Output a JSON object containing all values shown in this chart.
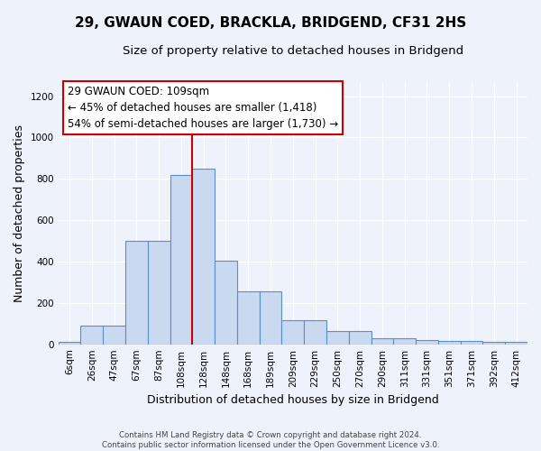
{
  "title1": "29, GWAUN COED, BRACKLA, BRIDGEND, CF31 2HS",
  "title2": "Size of property relative to detached houses in Bridgend",
  "xlabel": "Distribution of detached houses by size in Bridgend",
  "ylabel": "Number of detached properties",
  "categories": [
    "6sqm",
    "26sqm",
    "47sqm",
    "67sqm",
    "87sqm",
    "108sqm",
    "128sqm",
    "148sqm",
    "168sqm",
    "189sqm",
    "209sqm",
    "229sqm",
    "250sqm",
    "270sqm",
    "290sqm",
    "311sqm",
    "331sqm",
    "351sqm",
    "371sqm",
    "392sqm",
    "412sqm"
  ],
  "values": [
    10,
    90,
    90,
    500,
    500,
    820,
    850,
    405,
    255,
    255,
    115,
    115,
    65,
    65,
    30,
    30,
    20,
    15,
    15,
    10,
    10
  ],
  "bar_color": "#c9d9f0",
  "bar_edge_color": "#5b8fc9",
  "vline_x": 5.5,
  "vline_color": "#cc0000",
  "annotation_line1": "29 GWAUN COED: 109sqm",
  "annotation_line2": "← 45% of detached houses are smaller (1,418)",
  "annotation_line3": "54% of semi-detached houses are larger (1,730) →",
  "annotation_box_color": "#ffffff",
  "annotation_box_edge": "#cc0000",
  "ylim": [
    0,
    1270
  ],
  "yticks": [
    0,
    200,
    400,
    600,
    800,
    1000,
    1200
  ],
  "bg_color": "#eef2fb",
  "footer_text": "Contains HM Land Registry data © Crown copyright and database right 2024.\nContains public sector information licensed under the Open Government Licence v3.0.",
  "title1_fontsize": 11,
  "title2_fontsize": 9.5,
  "ylabel_fontsize": 9,
  "xlabel_fontsize": 9,
  "annotation_fontsize": 8.5,
  "tick_fontsize": 7.5
}
